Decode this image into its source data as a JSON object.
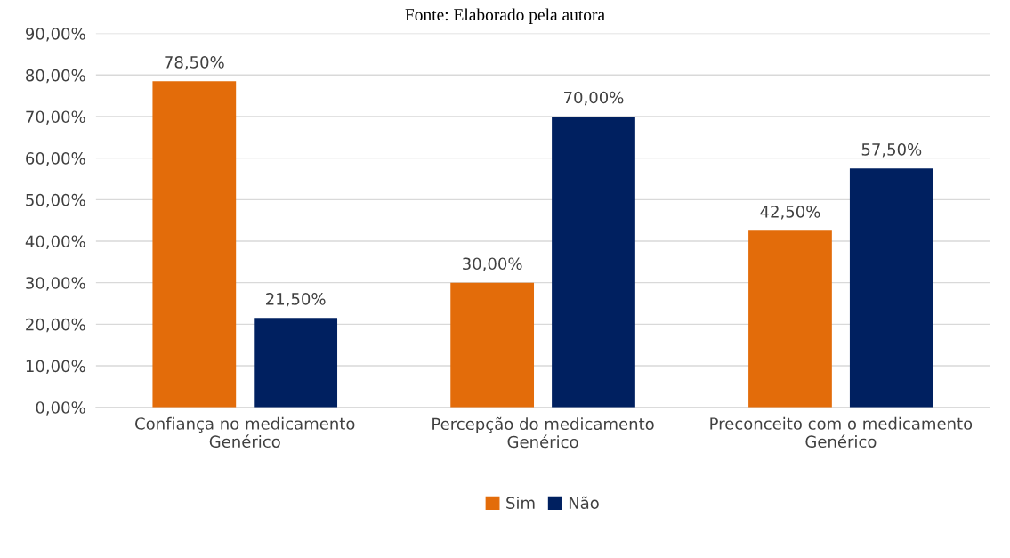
{
  "chart_data": {
    "type": "bar",
    "categories": [
      "Confiança no medicamento Genérico",
      "Percepção do medicamento Genérico",
      "Preconceito com o medicamento Genérico"
    ],
    "series": [
      {
        "name": "Sim",
        "color": "#e36c0a",
        "values": [
          78.5,
          30.0,
          42.5
        ],
        "value_labels": [
          "78,50%",
          "30,00%",
          "42,50%"
        ]
      },
      {
        "name": "Não",
        "color": "#002060",
        "values": [
          21.5,
          70.0,
          57.5
        ],
        "value_labels": [
          "21,50%",
          "70,00%",
          "57,50%"
        ]
      }
    ],
    "ylim": [
      0,
      90
    ],
    "yticks": [
      {
        "value": 0,
        "label": "0,00%"
      },
      {
        "value": 10,
        "label": "10,00%"
      },
      {
        "value": 20,
        "label": "20,00%"
      },
      {
        "value": 30,
        "label": "30,00%"
      },
      {
        "value": 40,
        "label": "40,00%"
      },
      {
        "value": 50,
        "label": "50,00%"
      },
      {
        "value": 60,
        "label": "60,00%"
      },
      {
        "value": 70,
        "label": "70,00%"
      },
      {
        "value": 80,
        "label": "80,00%"
      },
      {
        "value": 90,
        "label": "90,00%"
      }
    ],
    "grid": "y",
    "legend": "bottom",
    "annotations": [
      "Fonte: Elaborado pela autora"
    ]
  }
}
